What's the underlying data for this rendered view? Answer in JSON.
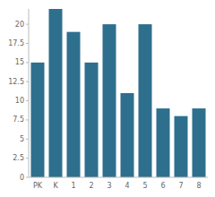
{
  "chart_data": {
    "type": "bar",
    "categories": [
      "PK",
      "K",
      "1",
      "2",
      "3",
      "4",
      "5",
      "6",
      "7",
      "8"
    ],
    "values": [
      15,
      22,
      19,
      15,
      20,
      11,
      20,
      9,
      8,
      9
    ],
    "color": "#2e6f8e",
    "ylim": [
      0,
      22
    ],
    "yticks": [
      0,
      2.5,
      5,
      7.5,
      10,
      12.5,
      15,
      17.5,
      20
    ],
    "grid": false
  }
}
